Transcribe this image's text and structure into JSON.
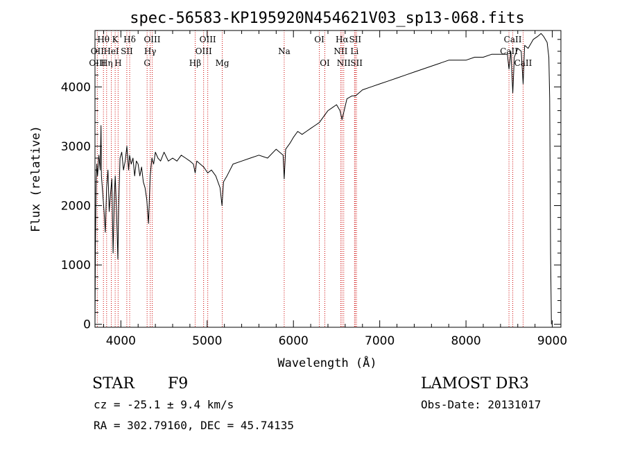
{
  "chart_data": {
    "type": "line",
    "title": "spec-56583-KP195920N454621V03_sp13-068.fits",
    "xlabel": "Wavelength (Å)",
    "ylabel": "Flux (relative)",
    "xlim": [
      3700,
      9100
    ],
    "ylim": [
      -50,
      4950
    ],
    "xticks": [
      4000,
      5000,
      6000,
      7000,
      8000,
      9000
    ],
    "yticks": [
      0,
      1000,
      2000,
      3000,
      4000
    ],
    "series": [
      {
        "points": [
          [
            3700,
            0
          ],
          [
            3705,
            1300
          ],
          [
            3712,
            2300
          ],
          [
            3720,
            2700
          ],
          [
            3730,
            2500
          ],
          [
            3745,
            2850
          ],
          [
            3760,
            2600
          ],
          [
            3770,
            3350
          ],
          [
            3775,
            2500
          ],
          [
            3790,
            2200
          ],
          [
            3805,
            1900
          ],
          [
            3820,
            1550
          ],
          [
            3835,
            2300
          ],
          [
            3850,
            2600
          ],
          [
            3865,
            1900
          ],
          [
            3880,
            2200
          ],
          [
            3895,
            2450
          ],
          [
            3910,
            1200
          ],
          [
            3925,
            2200
          ],
          [
            3935,
            2500
          ],
          [
            3950,
            1900
          ],
          [
            3965,
            1100
          ],
          [
            3975,
            2000
          ],
          [
            3990,
            2800
          ],
          [
            4010,
            2900
          ],
          [
            4030,
            2600
          ],
          [
            4050,
            2750
          ],
          [
            4070,
            3000
          ],
          [
            4090,
            2600
          ],
          [
            4101,
            2850
          ],
          [
            4120,
            2700
          ],
          [
            4140,
            2800
          ],
          [
            4160,
            2500
          ],
          [
            4180,
            2750
          ],
          [
            4200,
            2700
          ],
          [
            4220,
            2500
          ],
          [
            4240,
            2650
          ],
          [
            4260,
            2400
          ],
          [
            4280,
            2300
          ],
          [
            4300,
            2100
          ],
          [
            4320,
            1700
          ],
          [
            4340,
            2500
          ],
          [
            4360,
            2800
          ],
          [
            4380,
            2700
          ],
          [
            4400,
            2900
          ],
          [
            4430,
            2800
          ],
          [
            4460,
            2750
          ],
          [
            4500,
            2900
          ],
          [
            4550,
            2750
          ],
          [
            4600,
            2800
          ],
          [
            4650,
            2750
          ],
          [
            4700,
            2850
          ],
          [
            4750,
            2800
          ],
          [
            4800,
            2750
          ],
          [
            4840,
            2700
          ],
          [
            4861,
            2550
          ],
          [
            4880,
            2750
          ],
          [
            4920,
            2700
          ],
          [
            4960,
            2650
          ],
          [
            5007,
            2550
          ],
          [
            5050,
            2600
          ],
          [
            5100,
            2500
          ],
          [
            5150,
            2300
          ],
          [
            5172,
            2000
          ],
          [
            5190,
            2400
          ],
          [
            5230,
            2500
          ],
          [
            5300,
            2700
          ],
          [
            5400,
            2750
          ],
          [
            5500,
            2800
          ],
          [
            5600,
            2850
          ],
          [
            5700,
            2800
          ],
          [
            5800,
            2950
          ],
          [
            5880,
            2850
          ],
          [
            5893,
            2450
          ],
          [
            5910,
            2950
          ],
          [
            5960,
            3050
          ],
          [
            6000,
            3150
          ],
          [
            6050,
            3250
          ],
          [
            6100,
            3200
          ],
          [
            6150,
            3250
          ],
          [
            6200,
            3300
          ],
          [
            6250,
            3350
          ],
          [
            6300,
            3400
          ],
          [
            6350,
            3500
          ],
          [
            6400,
            3600
          ],
          [
            6450,
            3650
          ],
          [
            6500,
            3700
          ],
          [
            6540,
            3600
          ],
          [
            6563,
            3450
          ],
          [
            6580,
            3550
          ],
          [
            6620,
            3800
          ],
          [
            6680,
            3850
          ],
          [
            6720,
            3850
          ],
          [
            6800,
            3950
          ],
          [
            6900,
            4000
          ],
          [
            7000,
            4050
          ],
          [
            7100,
            4100
          ],
          [
            7200,
            4150
          ],
          [
            7300,
            4200
          ],
          [
            7400,
            4250
          ],
          [
            7500,
            4300
          ],
          [
            7600,
            4350
          ],
          [
            7700,
            4400
          ],
          [
            7800,
            4450
          ],
          [
            7900,
            4450
          ],
          [
            8000,
            4450
          ],
          [
            8100,
            4500
          ],
          [
            8200,
            4500
          ],
          [
            8300,
            4550
          ],
          [
            8400,
            4550
          ],
          [
            8480,
            4550
          ],
          [
            8498,
            4300
          ],
          [
            8520,
            4600
          ],
          [
            8542,
            3900
          ],
          [
            8560,
            4500
          ],
          [
            8600,
            4650
          ],
          [
            8640,
            4600
          ],
          [
            8662,
            4050
          ],
          [
            8680,
            4700
          ],
          [
            8720,
            4650
          ],
          [
            8780,
            4800
          ],
          [
            8830,
            4850
          ],
          [
            8870,
            4900
          ],
          [
            8900,
            4850
          ],
          [
            8940,
            4750
          ],
          [
            8960,
            4500
          ],
          [
            8970,
            3800
          ],
          [
            8980,
            1200
          ],
          [
            8990,
            0
          ]
        ]
      }
    ],
    "line_labels": [
      {
        "name": "Hθ",
        "wl": 3798,
        "row": 1
      },
      {
        "name": "K",
        "wl": 3934,
        "row": 1
      },
      {
        "name": "Hδ",
        "wl": 4102,
        "row": 1
      },
      {
        "name": "OIII",
        "wl": 4363,
        "row": 1
      },
      {
        "name": "OIII",
        "wl": 5007,
        "row": 1
      },
      {
        "name": "OI",
        "wl": 6300,
        "row": 1
      },
      {
        "name": "Hα",
        "wl": 6563,
        "row": 1
      },
      {
        "name": "SII",
        "wl": 6716,
        "row": 1
      },
      {
        "name": "CaII",
        "wl": 8542,
        "row": 1
      },
      {
        "name": "OII",
        "wl": 3727,
        "row": 2
      },
      {
        "name": "HeI",
        "wl": 3889,
        "row": 2
      },
      {
        "name": "SII",
        "wl": 4069,
        "row": 2
      },
      {
        "name": "Hγ",
        "wl": 4340,
        "row": 2
      },
      {
        "name": "OIII",
        "wl": 4959,
        "row": 2
      },
      {
        "name": "Na",
        "wl": 5893,
        "row": 2
      },
      {
        "name": "NII",
        "wl": 6548,
        "row": 2
      },
      {
        "name": "Li",
        "wl": 6708,
        "row": 2
      },
      {
        "name": "CaII",
        "wl": 8498,
        "row": 2
      },
      {
        "name": "OIII",
        "wl": 3727,
        "row": 3
      },
      {
        "name": "Hη",
        "wl": 3835,
        "row": 3
      },
      {
        "name": "H",
        "wl": 3968,
        "row": 3
      },
      {
        "name": "G",
        "wl": 4304,
        "row": 3
      },
      {
        "name": "Hβ",
        "wl": 4861,
        "row": 3
      },
      {
        "name": "Mg",
        "wl": 5175,
        "row": 3
      },
      {
        "name": "OI",
        "wl": 6364,
        "row": 3
      },
      {
        "name": "NII",
        "wl": 6583,
        "row": 3
      },
      {
        "name": "SII",
        "wl": 6731,
        "row": 3
      },
      {
        "name": "CaII",
        "wl": 8662,
        "row": 3
      }
    ],
    "marker_lines": [
      3727,
      3798,
      3835,
      3889,
      3934,
      3968,
      4069,
      4102,
      4304,
      4340,
      4363,
      4861,
      4959,
      5007,
      5175,
      5893,
      6300,
      6364,
      6548,
      6563,
      6583,
      6708,
      6716,
      6731,
      8498,
      8542,
      8662
    ],
    "marker_color": "#cc0000"
  },
  "info": {
    "class": "STAR",
    "subclass": "F9",
    "survey": "LAMOST DR3",
    "cz": "cz = -25.1 ± 9.4 km/s",
    "obsdate": "Obs-Date: 20131017",
    "radec": "RA = 302.79160, DEC =  45.74135"
  }
}
